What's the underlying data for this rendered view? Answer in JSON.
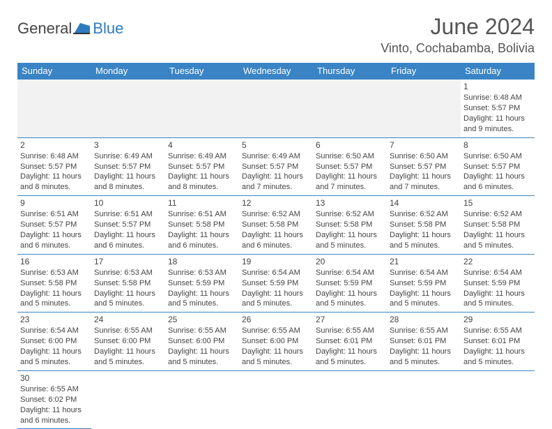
{
  "logo": {
    "general": "General",
    "blue": "Blue"
  },
  "title": "June 2024",
  "location": "Vinto, Cochabamba, Bolivia",
  "colors": {
    "header_bg": "#3a84c5",
    "header_text": "#ffffff",
    "border": "#3a84c5",
    "text": "#444444",
    "logo_blue": "#2c7bbf",
    "spacer_bg": "#f2f2f2"
  },
  "day_headers": [
    "Sunday",
    "Monday",
    "Tuesday",
    "Wednesday",
    "Thursday",
    "Friday",
    "Saturday"
  ],
  "cells": [
    {
      "day": "1",
      "sunrise": "Sunrise: 6:48 AM",
      "sunset": "Sunset: 5:57 PM",
      "daylight": "Daylight: 11 hours and 9 minutes."
    },
    {
      "day": "2",
      "sunrise": "Sunrise: 6:48 AM",
      "sunset": "Sunset: 5:57 PM",
      "daylight": "Daylight: 11 hours and 8 minutes."
    },
    {
      "day": "3",
      "sunrise": "Sunrise: 6:49 AM",
      "sunset": "Sunset: 5:57 PM",
      "daylight": "Daylight: 11 hours and 8 minutes."
    },
    {
      "day": "4",
      "sunrise": "Sunrise: 6:49 AM",
      "sunset": "Sunset: 5:57 PM",
      "daylight": "Daylight: 11 hours and 8 minutes."
    },
    {
      "day": "5",
      "sunrise": "Sunrise: 6:49 AM",
      "sunset": "Sunset: 5:57 PM",
      "daylight": "Daylight: 11 hours and 7 minutes."
    },
    {
      "day": "6",
      "sunrise": "Sunrise: 6:50 AM",
      "sunset": "Sunset: 5:57 PM",
      "daylight": "Daylight: 11 hours and 7 minutes."
    },
    {
      "day": "7",
      "sunrise": "Sunrise: 6:50 AM",
      "sunset": "Sunset: 5:57 PM",
      "daylight": "Daylight: 11 hours and 7 minutes."
    },
    {
      "day": "8",
      "sunrise": "Sunrise: 6:50 AM",
      "sunset": "Sunset: 5:57 PM",
      "daylight": "Daylight: 11 hours and 6 minutes."
    },
    {
      "day": "9",
      "sunrise": "Sunrise: 6:51 AM",
      "sunset": "Sunset: 5:57 PM",
      "daylight": "Daylight: 11 hours and 6 minutes."
    },
    {
      "day": "10",
      "sunrise": "Sunrise: 6:51 AM",
      "sunset": "Sunset: 5:57 PM",
      "daylight": "Daylight: 11 hours and 6 minutes."
    },
    {
      "day": "11",
      "sunrise": "Sunrise: 6:51 AM",
      "sunset": "Sunset: 5:58 PM",
      "daylight": "Daylight: 11 hours and 6 minutes."
    },
    {
      "day": "12",
      "sunrise": "Sunrise: 6:52 AM",
      "sunset": "Sunset: 5:58 PM",
      "daylight": "Daylight: 11 hours and 6 minutes."
    },
    {
      "day": "13",
      "sunrise": "Sunrise: 6:52 AM",
      "sunset": "Sunset: 5:58 PM",
      "daylight": "Daylight: 11 hours and 5 minutes."
    },
    {
      "day": "14",
      "sunrise": "Sunrise: 6:52 AM",
      "sunset": "Sunset: 5:58 PM",
      "daylight": "Daylight: 11 hours and 5 minutes."
    },
    {
      "day": "15",
      "sunrise": "Sunrise: 6:52 AM",
      "sunset": "Sunset: 5:58 PM",
      "daylight": "Daylight: 11 hours and 5 minutes."
    },
    {
      "day": "16",
      "sunrise": "Sunrise: 6:53 AM",
      "sunset": "Sunset: 5:58 PM",
      "daylight": "Daylight: 11 hours and 5 minutes."
    },
    {
      "day": "17",
      "sunrise": "Sunrise: 6:53 AM",
      "sunset": "Sunset: 5:58 PM",
      "daylight": "Daylight: 11 hours and 5 minutes."
    },
    {
      "day": "18",
      "sunrise": "Sunrise: 6:53 AM",
      "sunset": "Sunset: 5:59 PM",
      "daylight": "Daylight: 11 hours and 5 minutes."
    },
    {
      "day": "19",
      "sunrise": "Sunrise: 6:54 AM",
      "sunset": "Sunset: 5:59 PM",
      "daylight": "Daylight: 11 hours and 5 minutes."
    },
    {
      "day": "20",
      "sunrise": "Sunrise: 6:54 AM",
      "sunset": "Sunset: 5:59 PM",
      "daylight": "Daylight: 11 hours and 5 minutes."
    },
    {
      "day": "21",
      "sunrise": "Sunrise: 6:54 AM",
      "sunset": "Sunset: 5:59 PM",
      "daylight": "Daylight: 11 hours and 5 minutes."
    },
    {
      "day": "22",
      "sunrise": "Sunrise: 6:54 AM",
      "sunset": "Sunset: 5:59 PM",
      "daylight": "Daylight: 11 hours and 5 minutes."
    },
    {
      "day": "23",
      "sunrise": "Sunrise: 6:54 AM",
      "sunset": "Sunset: 6:00 PM",
      "daylight": "Daylight: 11 hours and 5 minutes."
    },
    {
      "day": "24",
      "sunrise": "Sunrise: 6:55 AM",
      "sunset": "Sunset: 6:00 PM",
      "daylight": "Daylight: 11 hours and 5 minutes."
    },
    {
      "day": "25",
      "sunrise": "Sunrise: 6:55 AM",
      "sunset": "Sunset: 6:00 PM",
      "daylight": "Daylight: 11 hours and 5 minutes."
    },
    {
      "day": "26",
      "sunrise": "Sunrise: 6:55 AM",
      "sunset": "Sunset: 6:00 PM",
      "daylight": "Daylight: 11 hours and 5 minutes."
    },
    {
      "day": "27",
      "sunrise": "Sunrise: 6:55 AM",
      "sunset": "Sunset: 6:01 PM",
      "daylight": "Daylight: 11 hours and 5 minutes."
    },
    {
      "day": "28",
      "sunrise": "Sunrise: 6:55 AM",
      "sunset": "Sunset: 6:01 PM",
      "daylight": "Daylight: 11 hours and 5 minutes."
    },
    {
      "day": "29",
      "sunrise": "Sunrise: 6:55 AM",
      "sunset": "Sunset: 6:01 PM",
      "daylight": "Daylight: 11 hours and 5 minutes."
    },
    {
      "day": "30",
      "sunrise": "Sunrise: 6:55 AM",
      "sunset": "Sunset: 6:02 PM",
      "daylight": "Daylight: 11 hours and 6 minutes."
    }
  ]
}
